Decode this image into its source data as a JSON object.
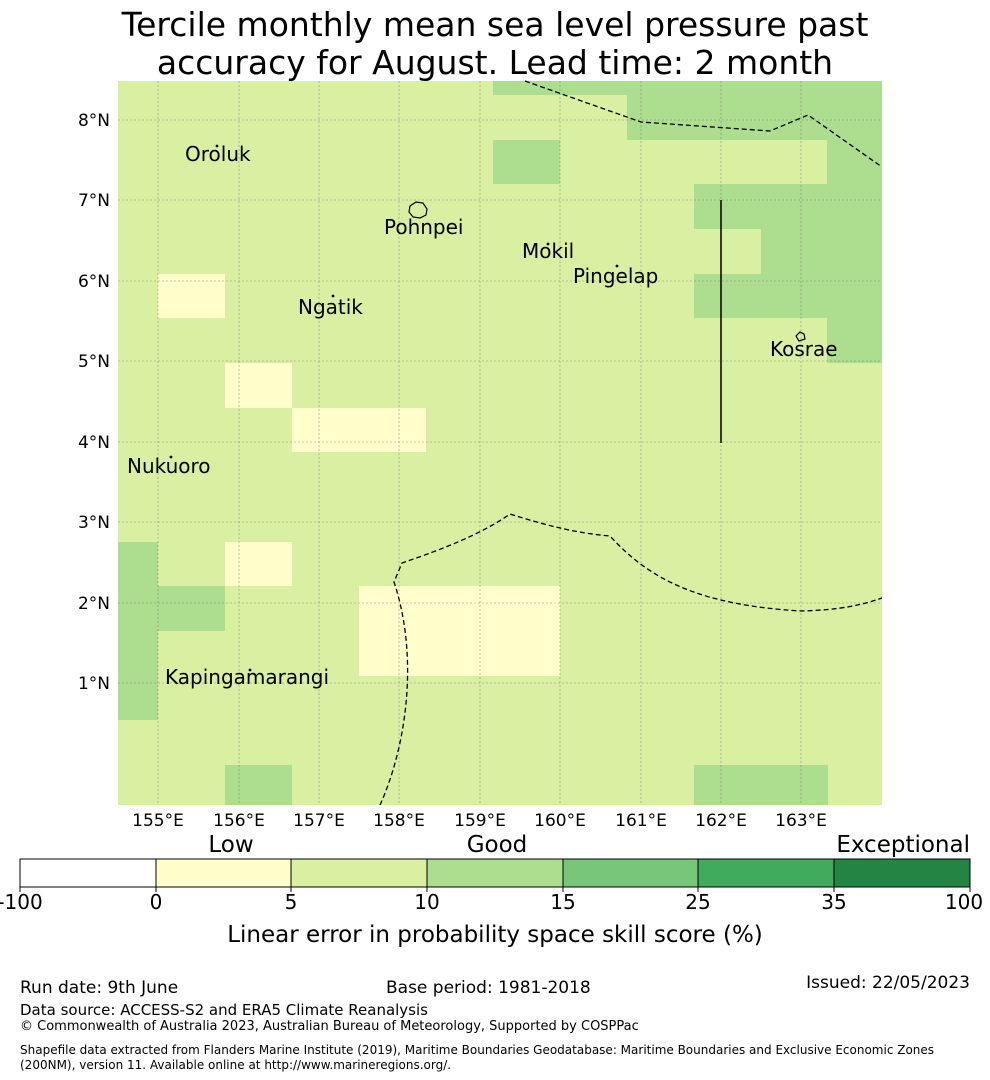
{
  "title_line1": "Tercile monthly mean sea level pressure past",
  "title_line2": "accuracy for August. Lead time: 2 month",
  "map": {
    "lon_labels": [
      "155°E",
      "156°E",
      "157°E",
      "158°E",
      "159°E",
      "160°E",
      "161°E",
      "162°E",
      "163°E"
    ],
    "lat_labels": [
      "8°N",
      "7°N",
      "6°N",
      "5°N",
      "4°N",
      "3°N",
      "2°N",
      "1°N"
    ],
    "places": [
      "Oroluk",
      "Pohnpei",
      "Mokil",
      "Pingelap",
      "Ngatik",
      "Kosrae",
      "Nukuoro",
      "Kapingamarangi"
    ],
    "colors": {
      "base": "#d9f0a3",
      "low": "#ffffcc",
      "good": "#addd8e"
    }
  },
  "colorbar": {
    "categories": [
      "Low",
      "Good",
      "Exceptional"
    ],
    "ticks": [
      "-100",
      "0",
      "5",
      "10",
      "15",
      "25",
      "35",
      "100"
    ],
    "colors": [
      "#ffffff",
      "#ffffcc",
      "#d9f0a3",
      "#addd8e",
      "#78c679",
      "#41ab5d",
      "#238443"
    ],
    "label": "Linear error in probability space skill score (%)"
  },
  "footer": {
    "run_date": "Run date: 9th June",
    "base_period": "Base period: 1981-2018",
    "issued": "Issued: 22/05/2023",
    "data_source": "Data source: ACCESS-S2 and ERA5 Climate Reanalysis",
    "copyright": "© Commonwealth of Australia 2023, Australian Bureau of Meteorology, Supported by COSPPac",
    "shapefile_line1": "Shapefile data extracted from Flanders Marine Institute (2019), Maritime Boundaries Geodatabase: Maritime Boundaries and Exclusive Economic Zones",
    "shapefile_line2": "(200NM), version 11. Available online at http://www.marineregions.org/."
  }
}
